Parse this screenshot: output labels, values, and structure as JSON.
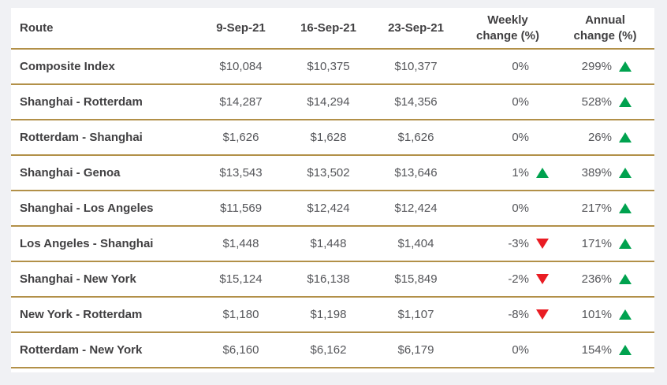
{
  "chart_data": {
    "type": "table",
    "title": "",
    "columns": [
      "Route",
      "9-Sep-21",
      "16-Sep-21",
      "23-Sep-21",
      "Weekly change (%)",
      "Annual change (%)"
    ],
    "rows": [
      {
        "route": "Composite Index",
        "sep9": "$10,084",
        "sep16": "$10,375",
        "sep23": "$10,377",
        "weekly_change": "0%",
        "weekly_trend": "none",
        "annual_change": "299%",
        "annual_trend": "up"
      },
      {
        "route": "Shanghai - Rotterdam",
        "sep9": "$14,287",
        "sep16": "$14,294",
        "sep23": "$14,356",
        "weekly_change": "0%",
        "weekly_trend": "none",
        "annual_change": "528%",
        "annual_trend": "up"
      },
      {
        "route": "Rotterdam - Shanghai",
        "sep9": "$1,626",
        "sep16": "$1,628",
        "sep23": "$1,626",
        "weekly_change": "0%",
        "weekly_trend": "none",
        "annual_change": "26%",
        "annual_trend": "up"
      },
      {
        "route": "Shanghai - Genoa",
        "sep9": "$13,543",
        "sep16": "$13,502",
        "sep23": "$13,646",
        "weekly_change": "1%",
        "weekly_trend": "up",
        "annual_change": "389%",
        "annual_trend": "up"
      },
      {
        "route": "Shanghai - Los Angeles",
        "sep9": "$11,569",
        "sep16": "$12,424",
        "sep23": "$12,424",
        "weekly_change": "0%",
        "weekly_trend": "none",
        "annual_change": "217%",
        "annual_trend": "up"
      },
      {
        "route": "Los Angeles - Shanghai",
        "sep9": "$1,448",
        "sep16": "$1,448",
        "sep23": "$1,404",
        "weekly_change": "-3%",
        "weekly_trend": "down",
        "annual_change": "171%",
        "annual_trend": "up"
      },
      {
        "route": "Shanghai - New York",
        "sep9": "$15,124",
        "sep16": "$16,138",
        "sep23": "$15,849",
        "weekly_change": "-2%",
        "weekly_trend": "down",
        "annual_change": "236%",
        "annual_trend": "up"
      },
      {
        "route": "New York - Rotterdam",
        "sep9": "$1,180",
        "sep16": "$1,198",
        "sep23": "$1,107",
        "weekly_change": "-8%",
        "weekly_trend": "down",
        "annual_change": "101%",
        "annual_trend": "up"
      },
      {
        "route": "Rotterdam - New York",
        "sep9": "$6,160",
        "sep16": "$6,162",
        "sep23": "$6,179",
        "weekly_change": "0%",
        "weekly_trend": "none",
        "annual_change": "154%",
        "annual_trend": "up"
      }
    ],
    "layout": {
      "grid": "horizontal gold rules between rows",
      "legend": "none"
    }
  },
  "colors": {
    "accent_gold": "#b29048",
    "positive_green": "#00a24f",
    "negative_red": "#e91c23",
    "header_text": "#414042",
    "value_text": "#55565a",
    "page_background": "#f0f1f4",
    "table_background": "#ffffff"
  },
  "icons": {
    "up_arrow": "triangle-up",
    "down_arrow": "triangle-down"
  }
}
